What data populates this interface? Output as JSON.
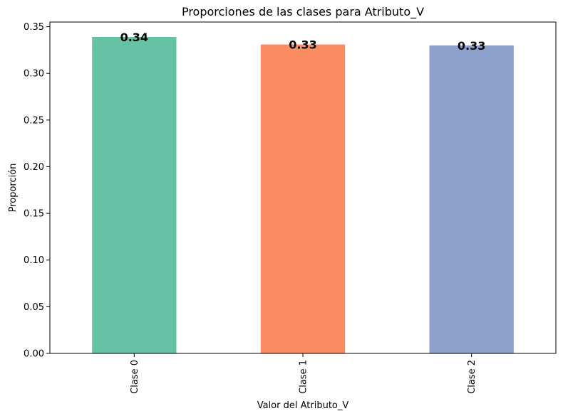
{
  "chart_data": {
    "type": "bar",
    "title": "Proporciones de las clases para Atributo_V",
    "xlabel": "Valor del Atributo_V",
    "ylabel": "Proporción",
    "categories": [
      "Clase 0",
      "Clase 1",
      "Clase 2"
    ],
    "values": [
      0.339,
      0.331,
      0.33
    ],
    "data_labels": [
      "0.34",
      "0.33",
      "0.33"
    ],
    "colors": [
      "#66c2a5",
      "#fc8d62",
      "#8da0cb"
    ],
    "ylim": [
      0,
      0.355
    ],
    "yticks": [
      0.0,
      0.05,
      0.1,
      0.15,
      0.2,
      0.25,
      0.3,
      0.35
    ],
    "ytick_labels": [
      "0.00",
      "0.05",
      "0.10",
      "0.15",
      "0.20",
      "0.25",
      "0.30",
      "0.35"
    ],
    "grid": false,
    "legend": "none"
  }
}
